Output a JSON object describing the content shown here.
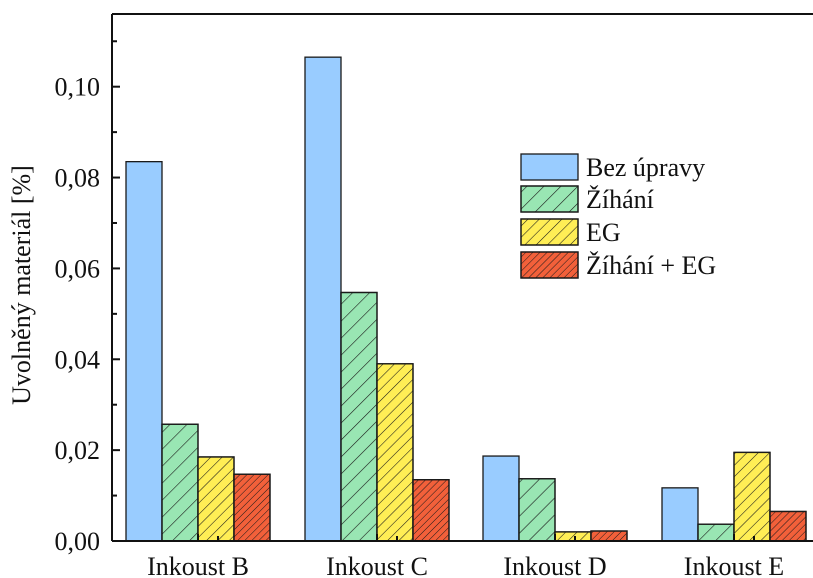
{
  "chart_data": {
    "type": "bar",
    "title": "",
    "xlabel": "",
    "ylabel": "Uvolněný materiál [%]",
    "ylim": [
      0,
      0.116
    ],
    "yticks": [
      "0,00",
      "0,02",
      "0,04",
      "0,06",
      "0,08",
      "0,10"
    ],
    "categories": [
      "Inkoust B",
      "Inkoust C",
      "Inkoust D",
      "Inkoust E"
    ],
    "series": [
      {
        "name": "Bez úpravy",
        "values": [
          0.0835,
          0.1065,
          0.0187,
          0.0117
        ],
        "color": "#99ccff",
        "hatch": "none"
      },
      {
        "name": "Žíhání",
        "values": [
          0.0257,
          0.0547,
          0.0137,
          0.0037
        ],
        "color": "#99e6b3",
        "hatch": "hatch"
      },
      {
        "name": "EG",
        "values": [
          0.0185,
          0.039,
          0.002,
          0.0195
        ],
        "color": "#ffee55",
        "hatch": "hatch"
      },
      {
        "name": "Žíhání + EG",
        "values": [
          0.0147,
          0.0135,
          0.0022,
          0.0065
        ],
        "color": "#f2603a",
        "hatch": "dense"
      }
    ],
    "legend_position": "upper-right",
    "grid": false
  }
}
